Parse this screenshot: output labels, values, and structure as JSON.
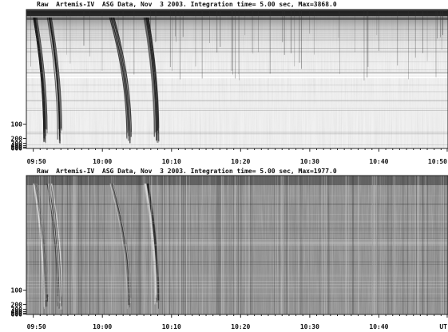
{
  "chart_data": [
    {
      "type": "heatmap",
      "title": "Raw  Artemis-IV  ASG Data, Nov  3 2003. Integration time= 5.00 sec, Max=3868.0",
      "colormap": "inverted-grayscale",
      "x_ticks": [
        "09:50",
        "10:00",
        "10:10",
        "10:20",
        "10:30",
        "10:40",
        "10:50"
      ],
      "y_ticks": [
        "100",
        "200",
        "300",
        "400",
        "500",
        "600"
      ],
      "xlim": [
        "09:49",
        "10:50"
      ],
      "ylim": [
        20,
        650
      ],
      "y_scale": "reciprocal"
    },
    {
      "type": "heatmap",
      "title": "Raw  Artemis-IV  ASG Data, Nov  3 2003. Integration time= 5.00 sec, Max=1977.0",
      "colormap": "grayscale-difference",
      "x_ticks": [
        "09:50",
        "10:00",
        "10:10",
        "10:20",
        "10:30",
        "10:40",
        "UT"
      ],
      "y_ticks": [
        "100",
        "200",
        "300",
        "400",
        "500",
        "600"
      ],
      "xlim": [
        "09:49",
        "10:50"
      ],
      "ylim": [
        20,
        650
      ],
      "y_scale": "reciprocal"
    }
  ]
}
